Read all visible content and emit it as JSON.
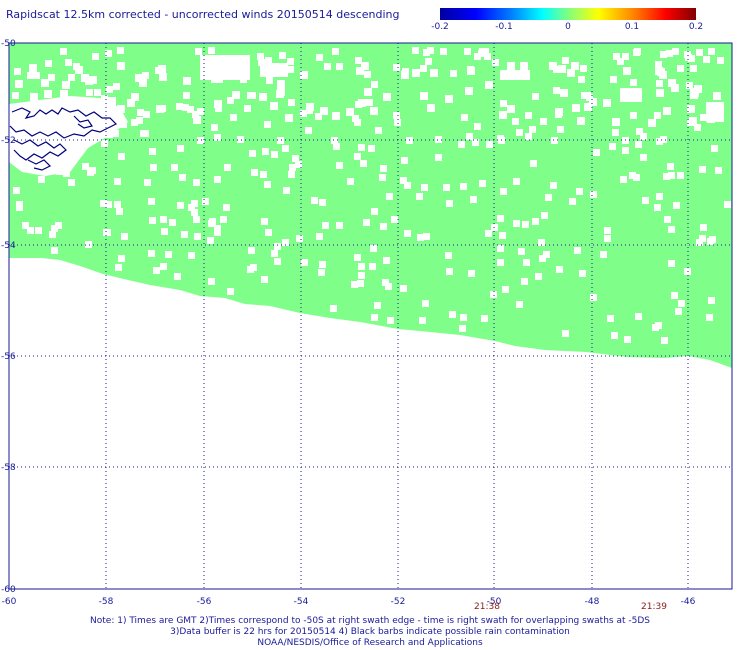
{
  "title": "Rapidscat 12.5km corrected - uncorrected winds 20150514 descending",
  "colorbar": {
    "ticks": [
      "-0.2",
      "-0.1",
      "0",
      "0.1",
      "0.2"
    ],
    "colors": [
      "#0000a0",
      "#0000ff",
      "#00ffff",
      "#80ff80",
      "#ffff00",
      "#ff8000",
      "#ff0000",
      "#800000"
    ]
  },
  "axes": {
    "x_ticks": [
      "-60",
      "-58",
      "-56",
      "-54",
      "-52",
      "-50",
      "-48",
      "-46"
    ],
    "y_ticks": [
      "-50",
      "-52",
      "-54",
      "-56",
      "-58",
      "-60"
    ],
    "lon_range": [
      -60,
      -45
    ],
    "lat_range": [
      -50,
      -60
    ]
  },
  "time_labels": [
    "21:38",
    "21:39"
  ],
  "swath_color": "#7fff8a",
  "coast_color": "#000080",
  "notes": [
    "Note: 1) Times are GMT 2)Times correspond to -50S at right swath edge - time is right swath for overlapping swaths at -5DS",
    "3)Data buffer is 22 hrs for 20150514 4) Black barbs indicate possible rain contamination",
    "NOAA/NESDIS/Office of Research and Applications"
  ]
}
